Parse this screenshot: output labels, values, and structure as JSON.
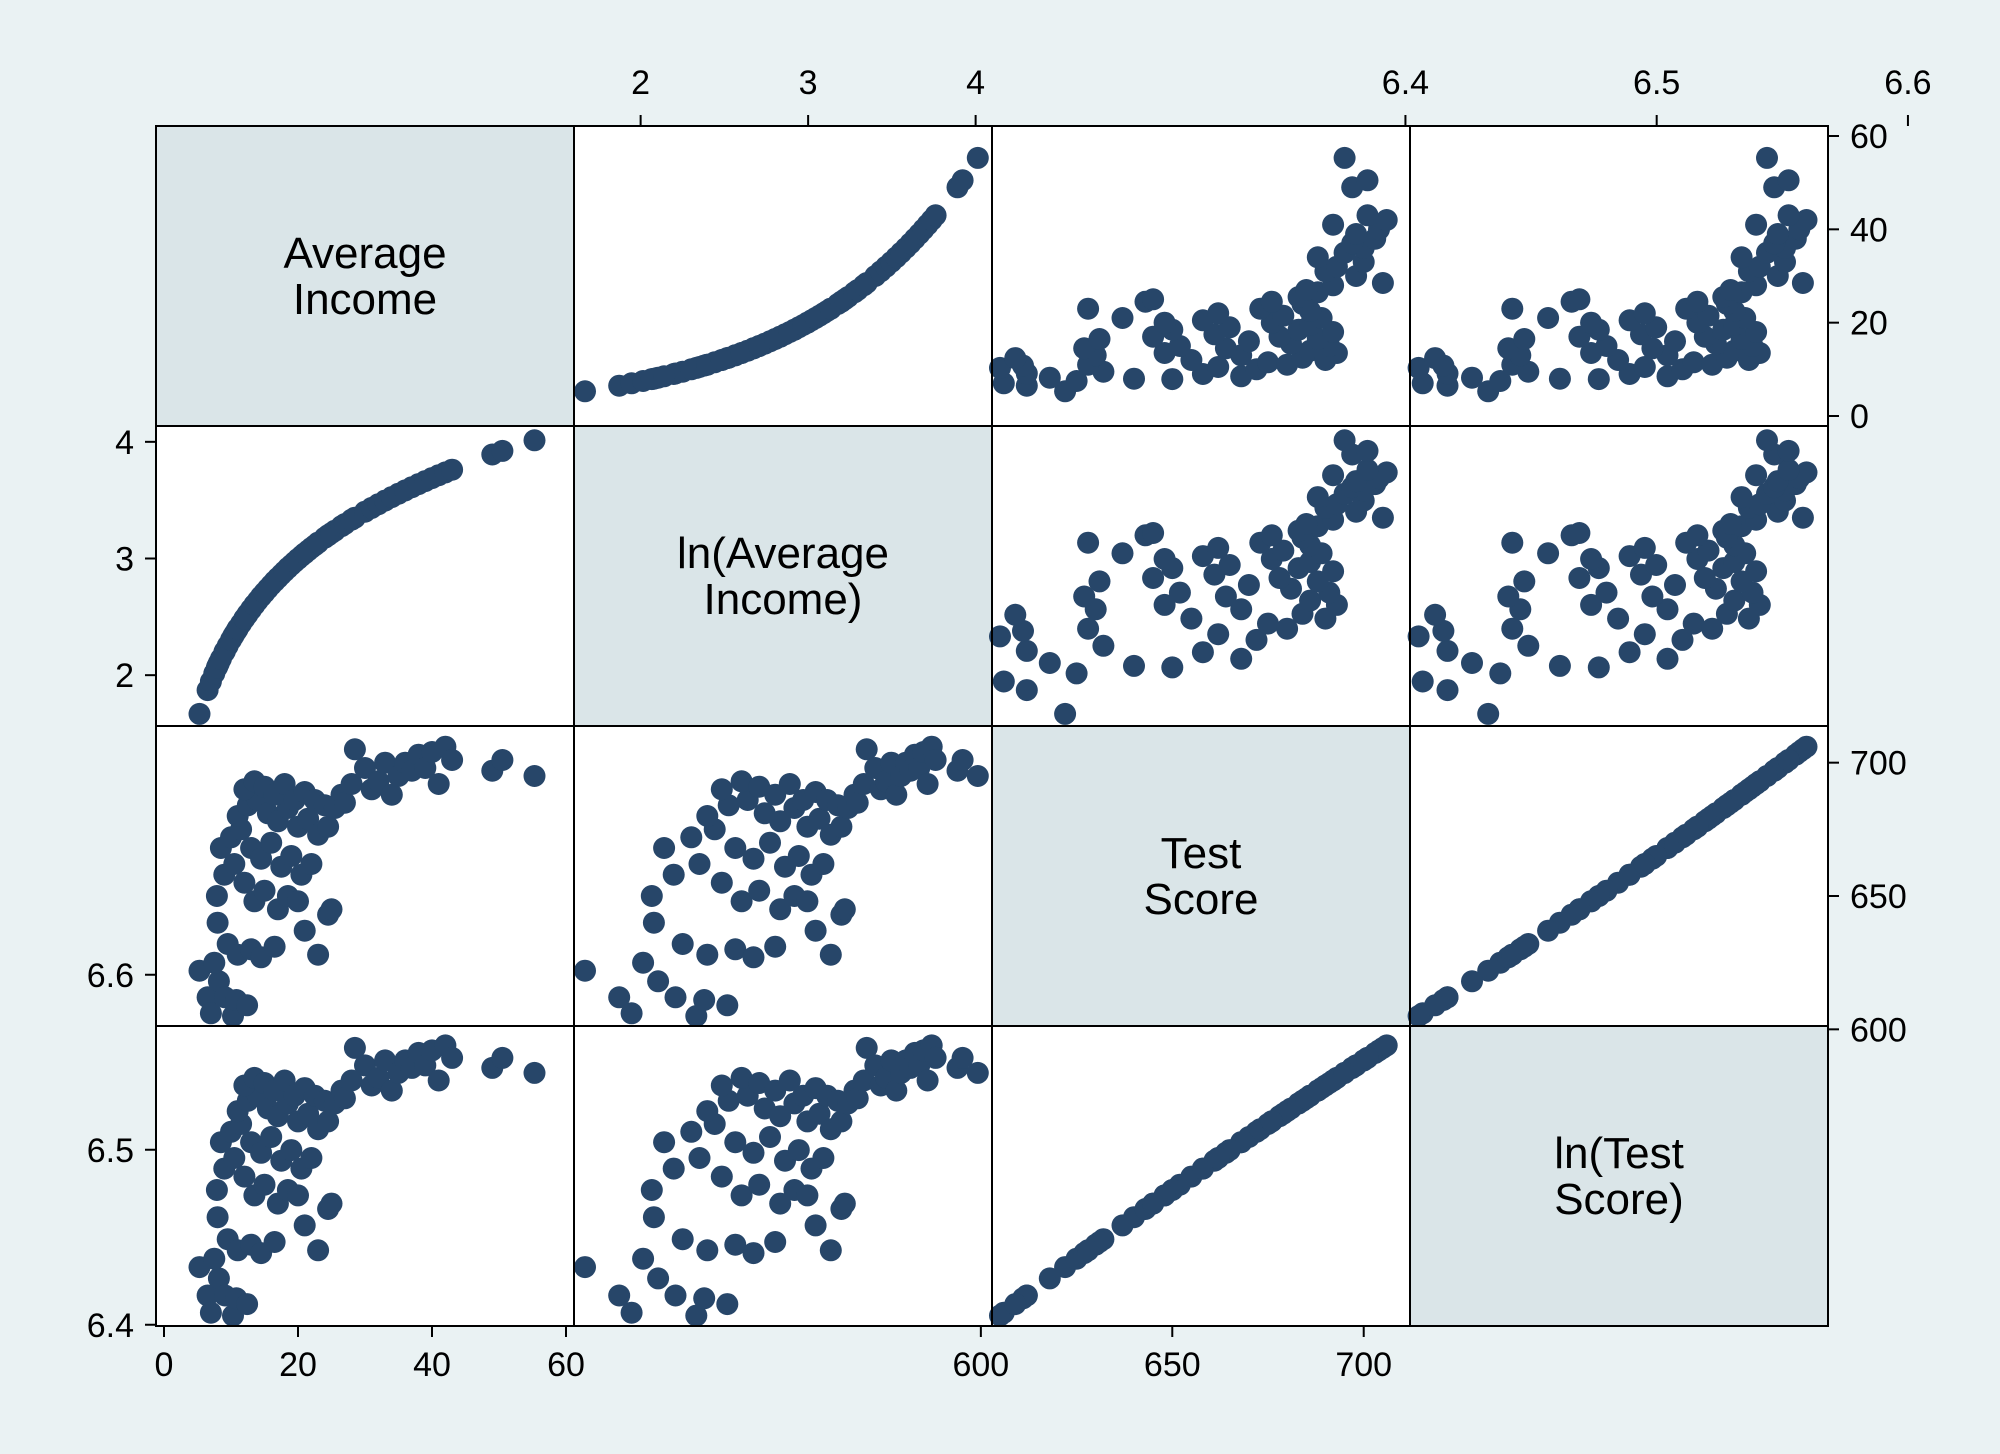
{
  "chart_data": {
    "type": "scatter",
    "subtype": "scatterplot-matrix",
    "variables": [
      {
        "name": "Average Income",
        "label_lines": [
          "Average",
          "Income"
        ],
        "range": [
          0,
          60
        ],
        "ticks": [
          0,
          20,
          40,
          60
        ]
      },
      {
        "name": "ln(Average Income)",
        "label_lines": [
          "ln(Average",
          "Income)"
        ],
        "range": [
          1.65,
          4.05
        ],
        "ticks": [
          2,
          3,
          4
        ]
      },
      {
        "name": "Test Score",
        "label_lines": [
          "Test",
          "Score"
        ],
        "range": [
          605,
          710
        ],
        "ticks": [
          600,
          650,
          700
        ]
      },
      {
        "name": "ln(Test Score)",
        "label_lines": [
          "ln(Test",
          "Score)"
        ],
        "range": [
          6.405,
          6.565
        ],
        "ticks": [
          6.4,
          6.5,
          6.6
        ]
      }
    ],
    "axes": {
      "top": [
        {
          "var": 1,
          "ticks": [
            2,
            3,
            4
          ]
        },
        {
          "var": 3,
          "ticks": [
            6.4,
            6.5,
            6.6
          ]
        }
      ],
      "bottom": [
        {
          "var": 0,
          "ticks": [
            0,
            20,
            40,
            60
          ]
        },
        {
          "var": 2,
          "ticks": [
            600,
            650,
            700
          ]
        }
      ],
      "left": [
        {
          "var": 1,
          "ticks": [
            2,
            3,
            4
          ]
        },
        {
          "var": 3,
          "ticks": [
            6.4,
            6.5,
            6.6
          ]
        }
      ],
      "right": [
        {
          "var": 0,
          "ticks": [
            0,
            20,
            40,
            60
          ]
        },
        {
          "var": 2,
          "ticks": [
            600,
            650,
            700
          ]
        }
      ]
    },
    "points_income_vs_score": [
      [
        5.3,
        622
      ],
      [
        6.5,
        612
      ],
      [
        7.0,
        606
      ],
      [
        8.2,
        618
      ],
      [
        9.1,
        612
      ],
      [
        10.3,
        605
      ],
      [
        10.8,
        611
      ],
      [
        12.4,
        609
      ],
      [
        7.5,
        625
      ],
      [
        8.0,
        640
      ],
      [
        9.5,
        632
      ],
      [
        11.0,
        628
      ],
      [
        13.0,
        630
      ],
      [
        14.5,
        627
      ],
      [
        16.5,
        631
      ],
      [
        7.9,
        650
      ],
      [
        9.0,
        658
      ],
      [
        10.5,
        662
      ],
      [
        12.0,
        655
      ],
      [
        13.5,
        648
      ],
      [
        15.0,
        652
      ],
      [
        17.0,
        645
      ],
      [
        18.5,
        650
      ],
      [
        20.0,
        648
      ],
      [
        8.5,
        668
      ],
      [
        10.0,
        672
      ],
      [
        11.5,
        675
      ],
      [
        13.0,
        668
      ],
      [
        14.5,
        664
      ],
      [
        16.0,
        670
      ],
      [
        17.5,
        661
      ],
      [
        19.0,
        665
      ],
      [
        20.5,
        658
      ],
      [
        22.0,
        662
      ],
      [
        11.0,
        680
      ],
      [
        12.5,
        684
      ],
      [
        14.0,
        686
      ],
      [
        15.5,
        681
      ],
      [
        17.0,
        678
      ],
      [
        18.5,
        683
      ],
      [
        20.0,
        676
      ],
      [
        21.5,
        679
      ],
      [
        23.0,
        673
      ],
      [
        24.5,
        676
      ],
      [
        12.0,
        690
      ],
      [
        13.5,
        693
      ],
      [
        15.0,
        691
      ],
      [
        16.5,
        688
      ],
      [
        18.0,
        692
      ],
      [
        19.5,
        686
      ],
      [
        21.0,
        689
      ],
      [
        22.5,
        686
      ],
      [
        24.0,
        684
      ],
      [
        25.5,
        683
      ],
      [
        21.0,
        637
      ],
      [
        23.0,
        628
      ],
      [
        24.5,
        643
      ],
      [
        25.0,
        645
      ],
      [
        26.5,
        688
      ],
      [
        27.0,
        685
      ],
      [
        28.0,
        692
      ],
      [
        28.5,
        705
      ],
      [
        30.0,
        698
      ],
      [
        31.0,
        690
      ],
      [
        32.0,
        693
      ],
      [
        33.0,
        700
      ],
      [
        34.0,
        688
      ],
      [
        35.0,
        695
      ],
      [
        36.0,
        700
      ],
      [
        37.0,
        697
      ],
      [
        38.0,
        703
      ],
      [
        39.0,
        698
      ],
      [
        40.0,
        704
      ],
      [
        41.0,
        692
      ],
      [
        42.0,
        706
      ],
      [
        43.0,
        701
      ],
      [
        49.0,
        697
      ],
      [
        50.5,
        701
      ],
      [
        55.3,
        695
      ]
    ]
  }
}
